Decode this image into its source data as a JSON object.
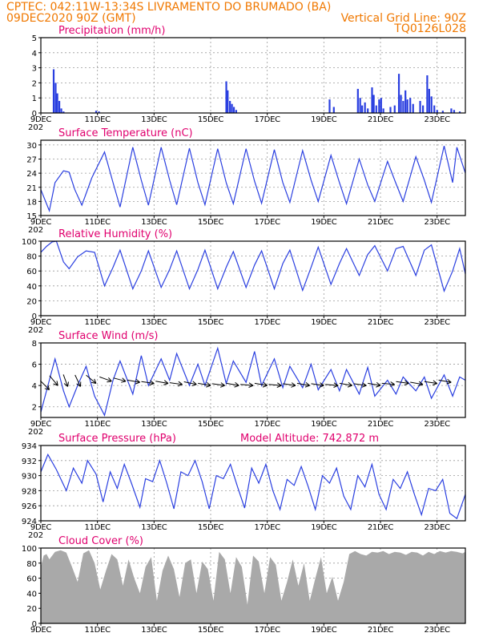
{
  "header": {
    "line1": "CPTEC:   042:11W-13:34S   LIVRAMENTO DO BRUMADO (BA)",
    "line2_left": "09DEC2020 90Z (GMT)",
    "line2_right": "Vertical Grid Line: 90Z",
    "line3_right": "TQ0126L028"
  },
  "x_axis": {
    "ticks": [
      "9DEC",
      "11DEC",
      "13DEC",
      "15DEC",
      "17DEC",
      "19DEC",
      "21DEC",
      "23DEC"
    ],
    "tick_days": [
      0,
      2,
      4,
      6,
      8,
      10,
      12,
      14
    ],
    "range_days": [
      0,
      15
    ],
    "year_fragment": "202"
  },
  "colors": {
    "series": "#2a3fe0",
    "cloud": "#a9a9a9",
    "title": "#e0006e",
    "header": "#f07800"
  },
  "chart_data": [
    {
      "id": "precip",
      "type": "bar",
      "title": "Precipitation (mm/h)",
      "ylim": [
        0,
        5
      ],
      "yticks": [
        0,
        1,
        2,
        3,
        4,
        5
      ],
      "grid": true,
      "bars": [
        [
          0.45,
          2.9
        ],
        [
          0.52,
          2.0
        ],
        [
          0.58,
          1.3
        ],
        [
          0.65,
          0.8
        ],
        [
          0.72,
          0.3
        ],
        [
          0.8,
          0.1
        ],
        [
          1.95,
          0.15
        ],
        [
          2.05,
          0.1
        ],
        [
          6.55,
          2.1
        ],
        [
          6.6,
          1.5
        ],
        [
          6.68,
          0.8
        ],
        [
          6.75,
          0.6
        ],
        [
          6.82,
          0.4
        ],
        [
          6.9,
          0.2
        ],
        [
          10.2,
          0.9
        ],
        [
          10.35,
          0.4
        ],
        [
          11.2,
          1.6
        ],
        [
          11.28,
          1.0
        ],
        [
          11.35,
          0.5
        ],
        [
          11.45,
          0.7
        ],
        [
          11.55,
          0.3
        ],
        [
          11.7,
          1.7
        ],
        [
          11.76,
          1.2
        ],
        [
          11.85,
          0.5
        ],
        [
          11.95,
          0.9
        ],
        [
          12.02,
          1.0
        ],
        [
          12.1,
          0.3
        ],
        [
          12.35,
          0.4
        ],
        [
          12.5,
          0.5
        ],
        [
          12.65,
          2.6
        ],
        [
          12.72,
          1.2
        ],
        [
          12.8,
          0.8
        ],
        [
          12.88,
          1.5
        ],
        [
          12.95,
          0.9
        ],
        [
          13.05,
          1.0
        ],
        [
          13.15,
          0.6
        ],
        [
          13.4,
          0.8
        ],
        [
          13.5,
          0.5
        ],
        [
          13.65,
          2.5
        ],
        [
          13.72,
          1.6
        ],
        [
          13.8,
          1.1
        ],
        [
          13.9,
          0.5
        ],
        [
          14.0,
          0.2
        ],
        [
          14.2,
          0.15
        ],
        [
          14.5,
          0.3
        ],
        [
          14.6,
          0.2
        ],
        [
          14.8,
          0.1
        ]
      ]
    },
    {
      "id": "temp",
      "type": "line",
      "title": "Surface Temperature (nC)",
      "ylim": [
        15,
        31
      ],
      "yticks": [
        15,
        18,
        21,
        24,
        27,
        30
      ],
      "grid": true,
      "x": [
        0,
        0.3,
        0.5,
        0.8,
        1.0,
        1.2,
        1.45,
        1.8,
        2.25,
        2.55,
        2.8,
        3.25,
        3.55,
        3.8,
        4.25,
        4.55,
        4.8,
        5.25,
        5.55,
        5.8,
        6.25,
        6.55,
        6.8,
        7.25,
        7.55,
        7.8,
        8.25,
        8.55,
        8.8,
        9.25,
        9.55,
        9.8,
        10.25,
        10.55,
        10.8,
        11.25,
        11.55,
        11.8,
        12.25,
        12.55,
        12.8,
        13.25,
        13.55,
        13.8,
        14.25,
        14.55,
        14.7,
        15.0
      ],
      "values": [
        20.5,
        16.0,
        22.0,
        24.5,
        24.2,
        20.5,
        17.2,
        23.0,
        28.5,
        22.0,
        16.8,
        29.5,
        22.5,
        17.2,
        29.5,
        22.5,
        17.3,
        29.3,
        22.0,
        17.3,
        29.2,
        22.0,
        17.5,
        29.2,
        22.3,
        17.6,
        29.0,
        22.0,
        17.8,
        28.8,
        22.5,
        18.0,
        27.8,
        22.0,
        17.5,
        27.0,
        21.5,
        18.0,
        26.5,
        21.8,
        18.0,
        27.5,
        22.5,
        17.8,
        29.8,
        22.0,
        29.5,
        24.0
      ]
    },
    {
      "id": "rh",
      "type": "line",
      "title": "Relative Humidity (%)",
      "ylim": [
        0,
        100
      ],
      "yticks": [
        0,
        20,
        40,
        60,
        80,
        100
      ],
      "grid": true,
      "x": [
        0,
        0.2,
        0.4,
        0.55,
        0.8,
        1.0,
        1.3,
        1.6,
        1.9,
        2.25,
        2.55,
        2.8,
        3.25,
        3.55,
        3.8,
        4.25,
        4.55,
        4.8,
        5.25,
        5.55,
        5.8,
        6.25,
        6.55,
        6.8,
        7.25,
        7.55,
        7.8,
        8.25,
        8.55,
        8.8,
        9.25,
        9.55,
        9.8,
        10.25,
        10.55,
        10.8,
        11.25,
        11.55,
        11.8,
        12.25,
        12.55,
        12.8,
        13.25,
        13.55,
        13.8,
        14.25,
        14.55,
        14.8,
        15.0
      ],
      "values": [
        85,
        93,
        99,
        100,
        72,
        63,
        79,
        87,
        85,
        40,
        65,
        88,
        36,
        60,
        87,
        38,
        62,
        87,
        36,
        62,
        88,
        36,
        65,
        86,
        38,
        68,
        87,
        36,
        70,
        88,
        34,
        65,
        92,
        42,
        70,
        90,
        54,
        82,
        94,
        60,
        90,
        93,
        54,
        88,
        95,
        33,
        60,
        90,
        56
      ]
    },
    {
      "id": "wind",
      "type": "line",
      "title": "Surface Wind (m/s)",
      "ylim": [
        1,
        8
      ],
      "yticks": [
        2,
        4,
        6,
        8
      ],
      "grid": true,
      "x": [
        0,
        0.3,
        0.5,
        0.8,
        1.0,
        1.3,
        1.6,
        1.9,
        2.25,
        2.55,
        2.8,
        3.25,
        3.55,
        3.8,
        4.25,
        4.55,
        4.8,
        5.25,
        5.55,
        5.8,
        6.25,
        6.55,
        6.8,
        7.25,
        7.55,
        7.8,
        8.25,
        8.55,
        8.8,
        9.25,
        9.55,
        9.8,
        10.25,
        10.55,
        10.8,
        11.25,
        11.55,
        11.8,
        12.25,
        12.55,
        12.8,
        13.25,
        13.55,
        13.8,
        14.25,
        14.55,
        14.8,
        15.0
      ],
      "values": [
        1.5,
        4.5,
        6.5,
        3.5,
        2.0,
        4.0,
        5.8,
        3.0,
        1.2,
        4.5,
        6.3,
        3.2,
        6.8,
        4.0,
        6.5,
        4.5,
        7.0,
        4.0,
        6.0,
        4.0,
        7.5,
        4.2,
        6.3,
        4.3,
        7.2,
        4.0,
        6.5,
        3.8,
        5.8,
        3.8,
        6.0,
        3.6,
        5.5,
        3.5,
        5.5,
        3.2,
        5.7,
        3.0,
        4.5,
        3.2,
        4.8,
        3.5,
        4.8,
        2.8,
        5.0,
        3.0,
        4.8,
        4.5
      ],
      "barbs": [
        [
          0.3,
          3.6,
          225
        ],
        [
          0.6,
          4.0,
          230
        ],
        [
          0.95,
          3.9,
          250
        ],
        [
          1.4,
          3.9,
          245
        ],
        [
          1.95,
          4.2,
          220
        ],
        [
          2.5,
          4.4,
          200
        ],
        [
          3.0,
          4.4,
          195
        ],
        [
          3.5,
          4.3,
          190
        ],
        [
          4.0,
          4.2,
          188
        ],
        [
          4.5,
          4.2,
          190
        ],
        [
          5.0,
          4.1,
          188
        ],
        [
          5.5,
          4.1,
          192
        ],
        [
          6.0,
          4.0,
          190
        ],
        [
          6.5,
          4.0,
          188
        ],
        [
          7.0,
          4.0,
          190
        ],
        [
          7.5,
          4.0,
          185
        ],
        [
          8.0,
          4.0,
          190
        ],
        [
          8.5,
          4.0,
          185
        ],
        [
          9.0,
          4.0,
          188
        ],
        [
          9.5,
          4.0,
          190
        ],
        [
          10.0,
          4.0,
          188
        ],
        [
          10.5,
          4.0,
          185
        ],
        [
          11.0,
          4.0,
          190
        ],
        [
          11.5,
          4.0,
          188
        ],
        [
          12.0,
          4.0,
          190
        ],
        [
          12.5,
          4.1,
          185
        ],
        [
          13.0,
          4.2,
          188
        ],
        [
          13.5,
          4.1,
          190
        ],
        [
          14.0,
          4.2,
          188
        ],
        [
          14.5,
          4.3,
          190
        ]
      ]
    },
    {
      "id": "pressure",
      "type": "line",
      "title": "Surface Pressure (hPa)",
      "annotation": "Model Altitude: 742.872 m",
      "ylim": [
        924,
        934
      ],
      "yticks": [
        924,
        926,
        928,
        930,
        932,
        934
      ],
      "grid": true,
      "x": [
        0,
        0.25,
        0.55,
        0.9,
        1.15,
        1.45,
        1.65,
        1.95,
        2.2,
        2.45,
        2.7,
        2.95,
        3.2,
        3.5,
        3.7,
        3.95,
        4.2,
        4.45,
        4.7,
        4.95,
        5.2,
        5.45,
        5.7,
        5.95,
        6.2,
        6.45,
        6.7,
        6.95,
        7.2,
        7.45,
        7.7,
        7.95,
        8.2,
        8.45,
        8.7,
        8.95,
        9.2,
        9.45,
        9.7,
        9.95,
        10.2,
        10.45,
        10.7,
        10.95,
        11.2,
        11.45,
        11.7,
        11.95,
        12.2,
        12.45,
        12.7,
        12.95,
        13.2,
        13.45,
        13.7,
        13.95,
        14.2,
        14.45,
        14.7,
        15.0
      ],
      "values": [
        930.5,
        932.8,
        930.8,
        928.0,
        931.0,
        929.0,
        932.0,
        930.2,
        926.5,
        930.5,
        928.3,
        931.5,
        929.0,
        925.8,
        929.6,
        929.2,
        932.0,
        929.0,
        925.6,
        930.5,
        930.0,
        932.0,
        929.2,
        925.6,
        930.0,
        929.6,
        931.5,
        928.5,
        925.7,
        931.0,
        929.0,
        931.5,
        928.0,
        925.5,
        929.5,
        928.7,
        931.2,
        928.5,
        925.5,
        930.0,
        929.0,
        931.0,
        927.3,
        925.5,
        930.0,
        928.5,
        931.5,
        927.5,
        925.5,
        929.5,
        928.3,
        930.5,
        927.5,
        924.8,
        928.3,
        928.0,
        929.5,
        925.0,
        924.3,
        927.5
      ]
    },
    {
      "id": "cloud",
      "type": "area",
      "title": "Cloud Cover (%)",
      "ylim": [
        0,
        100
      ],
      "yticks": [
        0,
        20,
        40,
        60,
        80,
        100
      ],
      "grid": true,
      "x": [
        0,
        0.1,
        0.2,
        0.3,
        0.5,
        0.7,
        0.9,
        1.1,
        1.3,
        1.5,
        1.7,
        1.9,
        2.1,
        2.3,
        2.5,
        2.7,
        2.9,
        3.1,
        3.3,
        3.5,
        3.7,
        3.9,
        4.1,
        4.3,
        4.5,
        4.7,
        4.9,
        5.1,
        5.3,
        5.5,
        5.7,
        5.9,
        6.1,
        6.3,
        6.5,
        6.7,
        6.9,
        7.1,
        7.3,
        7.5,
        7.7,
        7.9,
        8.1,
        8.3,
        8.5,
        8.7,
        8.9,
        9.1,
        9.3,
        9.5,
        9.7,
        9.9,
        10.1,
        10.3,
        10.5,
        10.7,
        10.9,
        11.1,
        11.3,
        11.5,
        11.7,
        11.9,
        12.1,
        12.3,
        12.5,
        12.7,
        12.9,
        13.1,
        13.3,
        13.5,
        13.7,
        13.9,
        14.1,
        14.3,
        14.5,
        14.7,
        14.9,
        15.0
      ],
      "values": [
        75,
        90,
        92,
        85,
        95,
        97,
        94,
        75,
        55,
        93,
        97,
        80,
        45,
        70,
        92,
        85,
        50,
        85,
        60,
        40,
        75,
        88,
        30,
        70,
        90,
        72,
        35,
        80,
        85,
        40,
        82,
        72,
        30,
        95,
        85,
        40,
        88,
        75,
        25,
        90,
        82,
        40,
        88,
        78,
        30,
        55,
        85,
        50,
        80,
        30,
        60,
        88,
        40,
        62,
        30,
        55,
        92,
        96,
        92,
        90,
        95,
        94,
        96,
        92,
        95,
        94,
        91,
        95,
        94,
        90,
        95,
        92,
        96,
        94,
        96,
        95,
        93,
        95
      ]
    }
  ]
}
